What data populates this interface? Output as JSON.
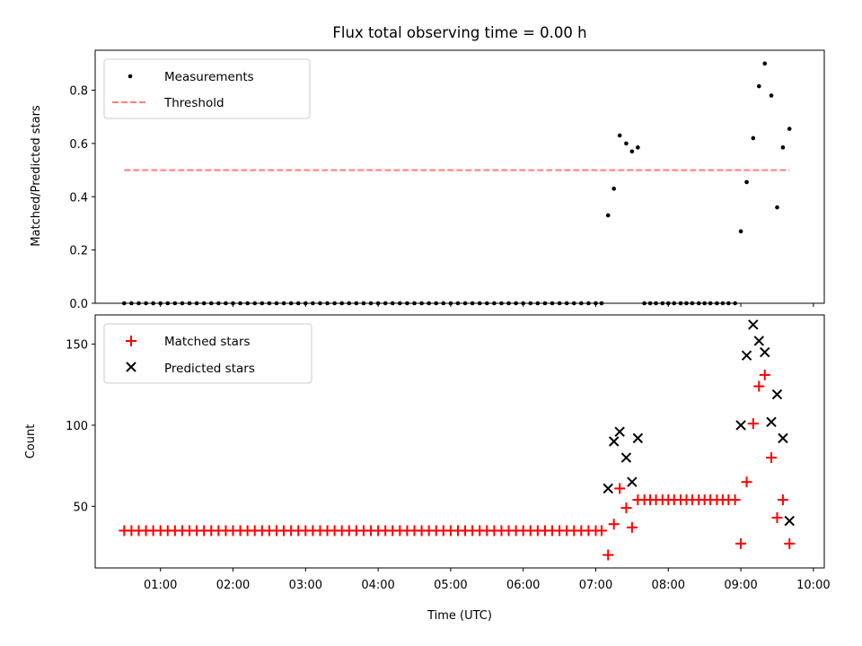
{
  "title": "Flux total observing time = 0.00 h",
  "chart_data": [
    {
      "type": "scatter",
      "xlabel": "",
      "ylabel": "Matched/Predicted stars",
      "xlim": [
        0.1,
        10.15
      ],
      "ylim": [
        0,
        0.95
      ],
      "yticks": [
        0.0,
        0.2,
        0.4,
        0.6,
        0.8
      ],
      "ytick_labels": [
        "0.0",
        "0.2",
        "0.4",
        "0.6",
        "0.8"
      ],
      "legend_position": "top-left",
      "series": [
        {
          "name": "Measurements",
          "marker": "dot",
          "color": "#000000",
          "x": [
            0.5,
            0.6,
            0.7,
            0.8,
            0.9,
            1.0,
            1.1,
            1.2,
            1.3,
            1.4,
            1.5,
            1.6,
            1.7,
            1.8,
            1.9,
            2.0,
            2.1,
            2.2,
            2.3,
            2.4,
            2.5,
            2.6,
            2.7,
            2.8,
            2.9,
            3.0,
            3.1,
            3.2,
            3.3,
            3.4,
            3.5,
            3.6,
            3.7,
            3.8,
            3.9,
            4.0,
            4.1,
            4.2,
            4.3,
            4.4,
            4.5,
            4.6,
            4.7,
            4.8,
            4.9,
            5.0,
            5.1,
            5.2,
            5.3,
            5.4,
            5.5,
            5.6,
            5.7,
            5.8,
            5.9,
            6.0,
            6.1,
            6.2,
            6.3,
            6.4,
            6.5,
            6.6,
            6.7,
            6.8,
            6.9,
            7.0,
            7.08,
            7.17,
            7.25,
            7.33,
            7.42,
            7.5,
            7.58,
            7.67,
            7.75,
            7.83,
            7.92,
            8.0,
            8.08,
            8.17,
            8.25,
            8.33,
            8.42,
            8.5,
            8.58,
            8.67,
            8.75,
            8.83,
            8.92,
            9.0,
            9.08,
            9.17,
            9.25,
            9.33,
            9.42,
            9.5,
            9.58,
            9.67
          ],
          "y": [
            0,
            0,
            0,
            0,
            0,
            0,
            0,
            0,
            0,
            0,
            0,
            0,
            0,
            0,
            0,
            0,
            0,
            0,
            0,
            0,
            0,
            0,
            0,
            0,
            0,
            0,
            0,
            0,
            0,
            0,
            0,
            0,
            0,
            0,
            0,
            0,
            0,
            0,
            0,
            0,
            0,
            0,
            0,
            0,
            0,
            0,
            0,
            0,
            0,
            0,
            0,
            0,
            0,
            0,
            0,
            0,
            0,
            0,
            0,
            0,
            0,
            0,
            0,
            0,
            0,
            0,
            0,
            0.33,
            0.43,
            0.63,
            0.6,
            0.57,
            0.585,
            0,
            0,
            0,
            0,
            0,
            0,
            0,
            0,
            0,
            0,
            0,
            0,
            0,
            0,
            0,
            0,
            0.27,
            0.455,
            0.62,
            0.815,
            0.9,
            0.78,
            0.36,
            0.585,
            0.655
          ]
        },
        {
          "name": "Threshold",
          "style": "dashed",
          "color": "#ff7f7f",
          "x": [
            0.5,
            9.67
          ],
          "y": [
            0.5,
            0.5
          ]
        }
      ]
    },
    {
      "type": "scatter",
      "xlabel": "Time (UTC)",
      "ylabel": "Count",
      "xlim": [
        0.1,
        10.15
      ],
      "ylim": [
        12,
        168
      ],
      "xticks": [
        1,
        2,
        3,
        4,
        5,
        6,
        7,
        8,
        9,
        10
      ],
      "xtick_labels": [
        "01:00",
        "02:00",
        "03:00",
        "04:00",
        "05:00",
        "06:00",
        "07:00",
        "08:00",
        "09:00",
        "10:00"
      ],
      "yticks": [
        50,
        100,
        150
      ],
      "ytick_labels": [
        "50",
        "100",
        "150"
      ],
      "legend_position": "top-left",
      "series": [
        {
          "name": "Matched stars",
          "marker": "plus",
          "color": "#ff0000",
          "x": [
            0.5,
            0.6,
            0.7,
            0.8,
            0.9,
            1.0,
            1.1,
            1.2,
            1.3,
            1.4,
            1.5,
            1.6,
            1.7,
            1.8,
            1.9,
            2.0,
            2.1,
            2.2,
            2.3,
            2.4,
            2.5,
            2.6,
            2.7,
            2.8,
            2.9,
            3.0,
            3.1,
            3.2,
            3.3,
            3.4,
            3.5,
            3.6,
            3.7,
            3.8,
            3.9,
            4.0,
            4.1,
            4.2,
            4.3,
            4.4,
            4.5,
            4.6,
            4.7,
            4.8,
            4.9,
            5.0,
            5.1,
            5.2,
            5.3,
            5.4,
            5.5,
            5.6,
            5.7,
            5.8,
            5.9,
            6.0,
            6.1,
            6.2,
            6.3,
            6.4,
            6.5,
            6.6,
            6.7,
            6.8,
            6.9,
            7.0,
            7.08,
            7.17,
            7.25,
            7.33,
            7.42,
            7.5,
            7.58,
            7.67,
            7.75,
            7.83,
            7.92,
            8.0,
            8.08,
            8.17,
            8.25,
            8.33,
            8.42,
            8.5,
            8.58,
            8.67,
            8.75,
            8.83,
            8.92,
            9.0,
            9.08,
            9.17,
            9.25,
            9.33,
            9.42,
            9.5,
            9.58,
            9.67
          ],
          "y": [
            35,
            35,
            35,
            35,
            35,
            35,
            35,
            35,
            35,
            35,
            35,
            35,
            35,
            35,
            35,
            35,
            35,
            35,
            35,
            35,
            35,
            35,
            35,
            35,
            35,
            35,
            35,
            35,
            35,
            35,
            35,
            35,
            35,
            35,
            35,
            35,
            35,
            35,
            35,
            35,
            35,
            35,
            35,
            35,
            35,
            35,
            35,
            35,
            35,
            35,
            35,
            35,
            35,
            35,
            35,
            35,
            35,
            35,
            35,
            35,
            35,
            35,
            35,
            35,
            35,
            35,
            35,
            20,
            39,
            61,
            49,
            37,
            54,
            54,
            54,
            54,
            54,
            54,
            54,
            54,
            54,
            54,
            54,
            54,
            54,
            54,
            54,
            54,
            54,
            27,
            65,
            101,
            124,
            131,
            80,
            43,
            54,
            27
          ]
        },
        {
          "name": "Predicted stars",
          "marker": "x",
          "color": "#000000",
          "x": [
            7.17,
            7.25,
            7.33,
            7.42,
            7.5,
            7.58,
            9.0,
            9.08,
            9.17,
            9.25,
            9.33,
            9.42,
            9.5,
            9.58,
            9.67
          ],
          "y": [
            61,
            90,
            96,
            80,
            65,
            92,
            100,
            143,
            162,
            152,
            145,
            102,
            119,
            92,
            41
          ]
        }
      ]
    }
  ]
}
